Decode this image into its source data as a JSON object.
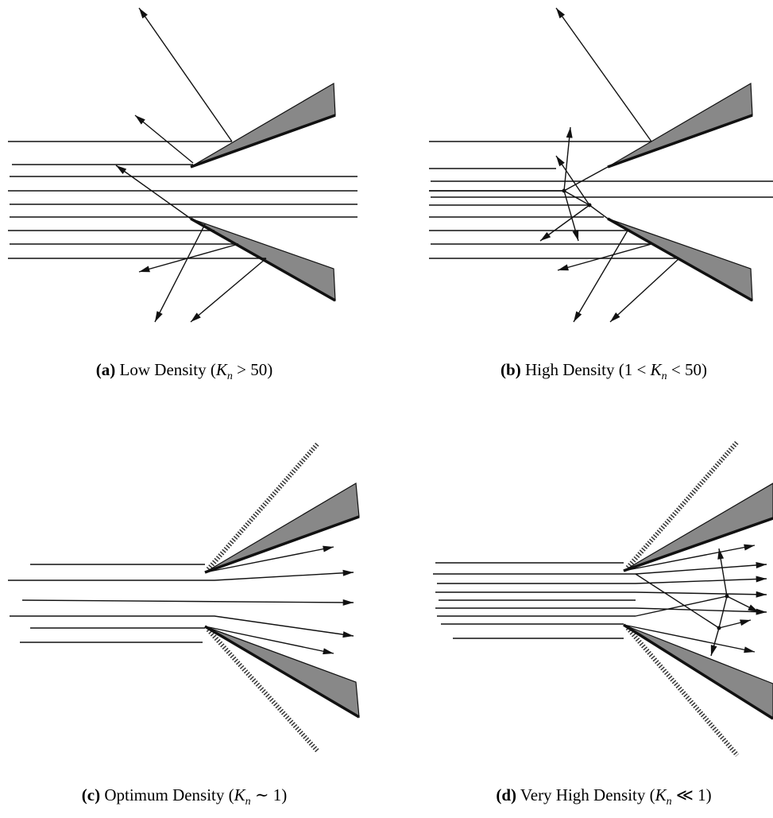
{
  "captions": [
    {
      "label": "(a)",
      "text": "Low Density (",
      "var": "K",
      "sub": "n",
      "rest": " > 50)"
    },
    {
      "label": "(b)",
      "text": "High Density (1 < ",
      "var": "K",
      "sub": "n",
      "rest": " < 50)"
    },
    {
      "label": "(c)",
      "text": "Optimum Density (",
      "var": "K",
      "sub": "n",
      "rest": " ∼ 1)"
    },
    {
      "label": "(d)",
      "text": "Very High Density (",
      "var": "K",
      "sub": "n",
      "rest": " ≪ 1)"
    }
  ]
}
